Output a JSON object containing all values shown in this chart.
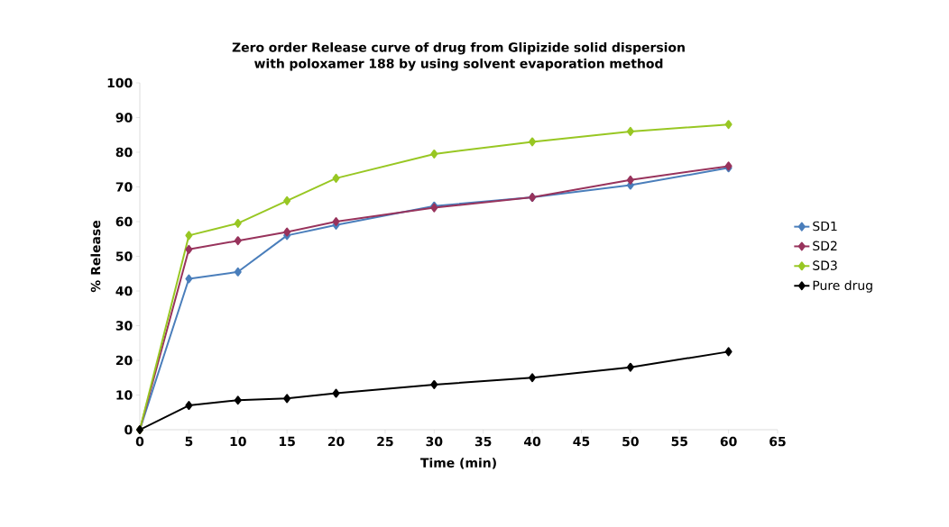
{
  "chart_data": {
    "type": "line",
    "title": "Zero order Release curve of drug from Glipizide solid dispersion with poloxamer 188  by using solvent evaporation method",
    "xlabel": "Time (min)",
    "ylabel": "% Release",
    "x": [
      0,
      5,
      10,
      15,
      20,
      30,
      40,
      50,
      60
    ],
    "series": [
      {
        "name": "SD1",
        "color": "#4a7ebb",
        "values": [
          0,
          43.5,
          45.5,
          56,
          59,
          64.5,
          67,
          70.5,
          75.5
        ]
      },
      {
        "name": "SD2",
        "color": "#98335c",
        "values": [
          0,
          52,
          54.5,
          57,
          60,
          64,
          67,
          72,
          76
        ]
      },
      {
        "name": "SD3",
        "color": "#98c723",
        "values": [
          0,
          56,
          59.5,
          66,
          72.5,
          79.5,
          83,
          86,
          88
        ]
      },
      {
        "name": "Pure drug",
        "color": "#000000",
        "values": [
          0,
          7,
          8.5,
          9,
          10.5,
          13,
          15,
          18,
          22.5
        ]
      }
    ],
    "xlim": [
      0,
      65
    ],
    "xticks": [
      0,
      5,
      10,
      15,
      20,
      25,
      30,
      35,
      40,
      45,
      50,
      55,
      60,
      65
    ],
    "ylim": [
      0,
      100
    ],
    "yticks": [
      0,
      10,
      20,
      30,
      40,
      50,
      60,
      70,
      80,
      90,
      100
    ],
    "grid": false,
    "legend": "right",
    "marker": "diamond",
    "line_style": "solid"
  }
}
